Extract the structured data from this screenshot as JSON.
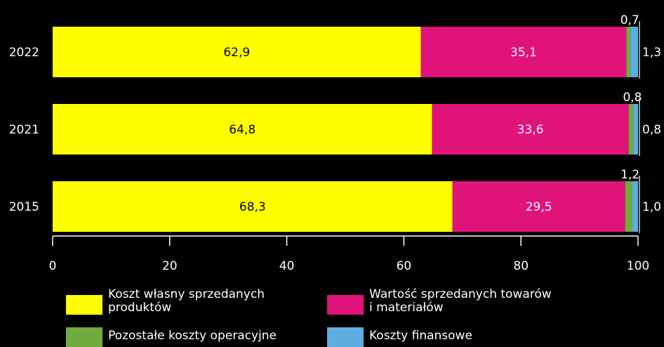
{
  "chart_data": {
    "type": "bar",
    "orientation": "horizontal",
    "stacked": true,
    "categories": [
      "2022",
      "2021",
      "2015"
    ],
    "series": [
      {
        "name": "Koszt własny sprzedanych produktów",
        "color": "#ffff00",
        "label_color": "#000000",
        "values": [
          62.9,
          64.8,
          68.3
        ],
        "labels": [
          "62,9",
          "64,8",
          "68,3"
        ]
      },
      {
        "name": "Wartość sprzedanych towarów i materiałów",
        "color": "#e0137a",
        "label_color": "#ffffff",
        "values": [
          35.1,
          33.6,
          29.5
        ],
        "labels": [
          "35,1",
          "33,6",
          "29,5"
        ]
      },
      {
        "name": "Pozostałe koszty operacyjne",
        "color": "#6fac3d",
        "values": [
          0.7,
          0.8,
          1.2
        ],
        "labels": [
          "0,7",
          "0,8",
          "1,2"
        ]
      },
      {
        "name": "Koszty finansowe",
        "color": "#5dade2",
        "values": [
          1.3,
          0.8,
          1.0
        ],
        "labels": [
          "1,3",
          "0,8",
          "1,0"
        ]
      }
    ],
    "xlim": [
      0,
      100
    ],
    "xticks": [
      "0",
      "20",
      "40",
      "60",
      "80",
      "100"
    ],
    "grid": false,
    "legend_position": "bottom"
  },
  "legend": [
    {
      "line1": "Koszt własny sprzedanych",
      "line2": "produktów",
      "color": "#ffff00"
    },
    {
      "line1": "Wartość sprzedanych towarów",
      "line2": "i materiałów",
      "color": "#e0137a"
    },
    {
      "line1": "Pozostałe koszty operacyjne",
      "line2": "",
      "color": "#6fac3d"
    },
    {
      "line1": "Koszty finansowe",
      "line2": "",
      "color": "#5dade2"
    }
  ]
}
